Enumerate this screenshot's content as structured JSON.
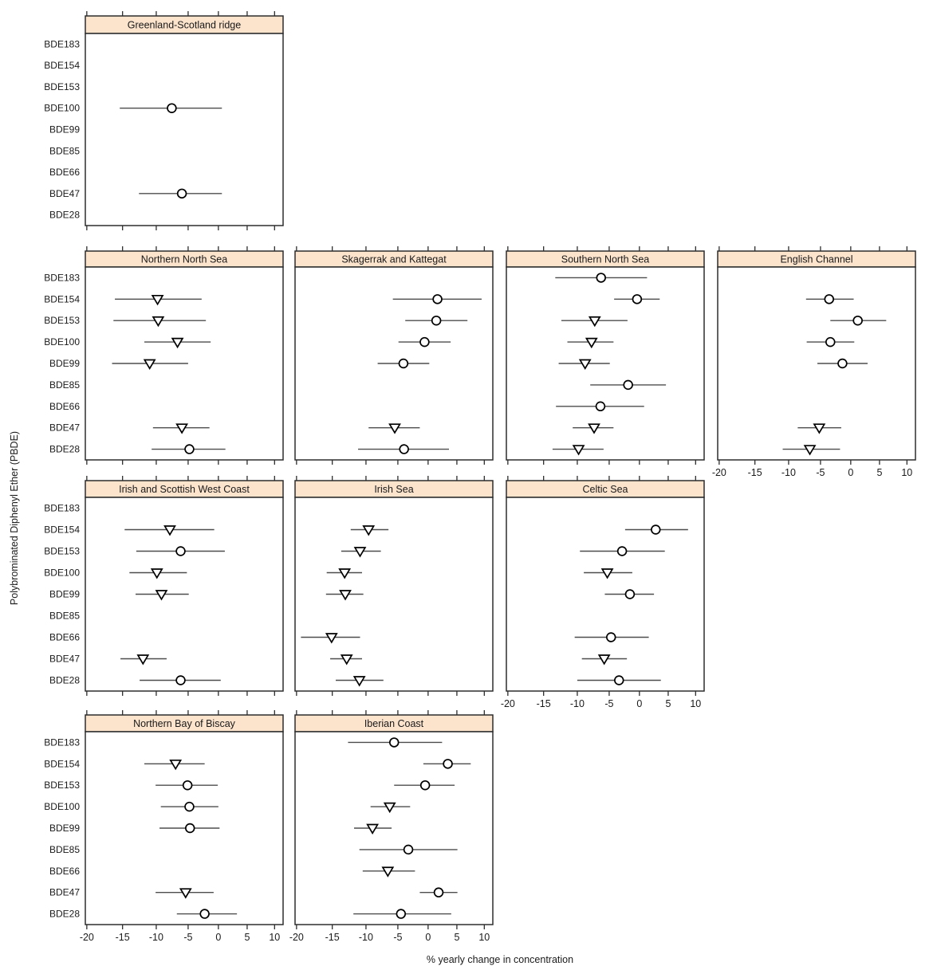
{
  "figure": {
    "background": "#ffffff"
  },
  "chart_data": {
    "type": "scatter",
    "variant": "trellis forest plot (point estimate with horizontal confidence interval per PBDE congener, one panel per sea region)",
    "x_axis": {
      "label": "% yearly change in concentration",
      "ticks": [
        -20,
        -15,
        -10,
        -5,
        0,
        5,
        10
      ],
      "range_pct": [
        -20.2,
        11.6
      ],
      "scale": "log(1 + pct/100)"
    },
    "y_axis": {
      "label": "Polybrominated Diphenyl Ether (PBDE)",
      "categories": [
        "BDE183",
        "BDE154",
        "BDE153",
        "BDE100",
        "BDE99",
        "BDE85",
        "BDE66",
        "BDE47",
        "BDE28"
      ]
    },
    "style": {
      "strip_fill": "#fbe3cc",
      "panel_border": "#2d2d2d",
      "ci_line_color": "#4d4d4d",
      "marker_fill": "#ffffff",
      "marker_stroke": "#000000",
      "background": "#ffffff"
    },
    "panels": [
      {
        "title": "Greenland-Scotland ridge",
        "grid_row": 0,
        "grid_col": 0,
        "show_y_labels": true,
        "show_x_tick_labels": false,
        "points": [
          {
            "congener": "BDE100",
            "marker": "circle",
            "estimate": -7.6,
            "ci_low": -15.4,
            "ci_high": 0.6
          },
          {
            "congener": "BDE47",
            "marker": "circle",
            "estimate": -6.0,
            "ci_low": -12.6,
            "ci_high": 0.6
          }
        ]
      },
      {
        "title": "Northern North Sea",
        "grid_row": 1,
        "grid_col": 0,
        "show_y_labels": true,
        "show_x_tick_labels": false,
        "points": [
          {
            "congener": "BDE154",
            "marker": "triangle-down",
            "estimate": -9.8,
            "ci_low": -16.1,
            "ci_high": -2.8
          },
          {
            "congener": "BDE153",
            "marker": "triangle-down",
            "estimate": -9.7,
            "ci_low": -16.3,
            "ci_high": -2.1
          },
          {
            "congener": "BDE100",
            "marker": "triangle-down",
            "estimate": -6.7,
            "ci_low": -11.8,
            "ci_high": -1.3
          },
          {
            "congener": "BDE99",
            "marker": "triangle-down",
            "estimate": -11.0,
            "ci_low": -16.5,
            "ci_high": -5.0
          },
          {
            "congener": "BDE47",
            "marker": "triangle-down",
            "estimate": -6.0,
            "ci_low": -10.5,
            "ci_high": -1.5
          },
          {
            "congener": "BDE28",
            "marker": "circle",
            "estimate": -4.8,
            "ci_low": -10.7,
            "ci_high": 1.2
          }
        ]
      },
      {
        "title": "Skagerrak and Kattegat",
        "grid_row": 1,
        "grid_col": 1,
        "show_y_labels": false,
        "show_x_tick_labels": false,
        "points": [
          {
            "congener": "BDE154",
            "marker": "circle",
            "estimate": 1.6,
            "ci_low": -5.8,
            "ci_high": 9.5
          },
          {
            "congener": "BDE153",
            "marker": "circle",
            "estimate": 1.4,
            "ci_low": -3.8,
            "ci_high": 6.9
          },
          {
            "congener": "BDE100",
            "marker": "circle",
            "estimate": -0.6,
            "ci_low": -4.9,
            "ci_high": 3.9
          },
          {
            "congener": "BDE99",
            "marker": "circle",
            "estimate": -4.1,
            "ci_low": -8.2,
            "ci_high": 0.2
          },
          {
            "congener": "BDE47",
            "marker": "triangle-down",
            "estimate": -5.5,
            "ci_low": -9.6,
            "ci_high": -1.4
          },
          {
            "congener": "BDE28",
            "marker": "circle",
            "estimate": -4.0,
            "ci_low": -11.2,
            "ci_high": 3.6
          }
        ]
      },
      {
        "title": "Southern North Sea",
        "grid_row": 1,
        "grid_col": 2,
        "show_y_labels": false,
        "show_x_tick_labels": false,
        "points": [
          {
            "congener": "BDE183",
            "marker": "circle",
            "estimate": -6.3,
            "ci_low": -13.3,
            "ci_high": 1.3
          },
          {
            "congener": "BDE154",
            "marker": "circle",
            "estimate": -0.4,
            "ci_low": -4.2,
            "ci_high": 3.5
          },
          {
            "congener": "BDE153",
            "marker": "triangle-down",
            "estimate": -7.3,
            "ci_low": -12.4,
            "ci_high": -2.0
          },
          {
            "congener": "BDE100",
            "marker": "triangle-down",
            "estimate": -7.8,
            "ci_low": -11.5,
            "ci_high": -4.3
          },
          {
            "congener": "BDE99",
            "marker": "triangle-down",
            "estimate": -8.8,
            "ci_low": -12.8,
            "ci_high": -4.9
          },
          {
            "congener": "BDE85",
            "marker": "circle",
            "estimate": -1.9,
            "ci_low": -8.0,
            "ci_high": 4.6
          },
          {
            "congener": "BDE66",
            "marker": "circle",
            "estimate": -6.4,
            "ci_low": -13.2,
            "ci_high": 0.8
          },
          {
            "congener": "BDE47",
            "marker": "triangle-down",
            "estimate": -7.4,
            "ci_low": -10.7,
            "ci_high": -4.3
          },
          {
            "congener": "BDE28",
            "marker": "triangle-down",
            "estimate": -9.8,
            "ci_low": -13.7,
            "ci_high": -5.9
          }
        ]
      },
      {
        "title": "English Channel",
        "grid_row": 1,
        "grid_col": 3,
        "show_y_labels": false,
        "show_x_tick_labels": true,
        "points": [
          {
            "congener": "BDE154",
            "marker": "circle",
            "estimate": -3.6,
            "ci_low": -7.3,
            "ci_high": 0.5
          },
          {
            "congener": "BDE153",
            "marker": "circle",
            "estimate": 1.2,
            "ci_low": -3.4,
            "ci_high": 6.2
          },
          {
            "congener": "BDE100",
            "marker": "circle",
            "estimate": -3.4,
            "ci_low": -7.2,
            "ci_high": 0.6
          },
          {
            "congener": "BDE99",
            "marker": "circle",
            "estimate": -1.4,
            "ci_low": -5.5,
            "ci_high": 2.9
          },
          {
            "congener": "BDE47",
            "marker": "triangle-down",
            "estimate": -5.2,
            "ci_low": -8.6,
            "ci_high": -1.6
          },
          {
            "congener": "BDE28",
            "marker": "triangle-down",
            "estimate": -6.7,
            "ci_low": -10.9,
            "ci_high": -1.8
          }
        ]
      },
      {
        "title": "Irish and Scottish West Coast",
        "grid_row": 2,
        "grid_col": 0,
        "show_y_labels": true,
        "show_x_tick_labels": false,
        "points": [
          {
            "congener": "BDE154",
            "marker": "triangle-down",
            "estimate": -7.9,
            "ci_low": -14.7,
            "ci_high": -0.7
          },
          {
            "congener": "BDE153",
            "marker": "circle",
            "estimate": -6.2,
            "ci_low": -13.0,
            "ci_high": 1.1
          },
          {
            "congener": "BDE100",
            "marker": "triangle-down",
            "estimate": -9.9,
            "ci_low": -14.0,
            "ci_high": -5.2
          },
          {
            "congener": "BDE99",
            "marker": "triangle-down",
            "estimate": -9.2,
            "ci_low": -13.1,
            "ci_high": -4.9
          },
          {
            "congener": "BDE47",
            "marker": "triangle-down",
            "estimate": -12.0,
            "ci_low": -15.3,
            "ci_high": -8.4
          },
          {
            "congener": "BDE28",
            "marker": "circle",
            "estimate": -6.2,
            "ci_low": -12.5,
            "ci_high": 0.4
          }
        ]
      },
      {
        "title": "Irish Sea",
        "grid_row": 2,
        "grid_col": 1,
        "show_y_labels": false,
        "show_x_tick_labels": false,
        "points": [
          {
            "congener": "BDE154",
            "marker": "triangle-down",
            "estimate": -9.6,
            "ci_low": -12.3,
            "ci_high": -6.5
          },
          {
            "congener": "BDE153",
            "marker": "triangle-down",
            "estimate": -10.9,
            "ci_low": -13.7,
            "ci_high": -7.7
          },
          {
            "congener": "BDE100",
            "marker": "triangle-down",
            "estimate": -13.2,
            "ci_low": -15.8,
            "ci_high": -10.6
          },
          {
            "congener": "BDE99",
            "marker": "triangle-down",
            "estimate": -13.1,
            "ci_low": -15.9,
            "ci_high": -10.4
          },
          {
            "congener": "BDE66",
            "marker": "triangle-down",
            "estimate": -15.1,
            "ci_low": -19.4,
            "ci_high": -10.9
          },
          {
            "congener": "BDE47",
            "marker": "triangle-down",
            "estimate": -12.9,
            "ci_low": -15.3,
            "ci_high": -10.6
          },
          {
            "congener": "BDE28",
            "marker": "triangle-down",
            "estimate": -11.0,
            "ci_low": -14.5,
            "ci_high": -7.3
          }
        ]
      },
      {
        "title": "Celtic Sea",
        "grid_row": 2,
        "grid_col": 2,
        "show_y_labels": false,
        "show_x_tick_labels": true,
        "points": [
          {
            "congener": "BDE154",
            "marker": "circle",
            "estimate": 2.8,
            "ci_low": -2.4,
            "ci_high": 8.6
          },
          {
            "congener": "BDE153",
            "marker": "circle",
            "estimate": -2.9,
            "ci_low": -9.6,
            "ci_high": 4.4
          },
          {
            "congener": "BDE100",
            "marker": "triangle-down",
            "estimate": -5.3,
            "ci_low": -9.0,
            "ci_high": -1.2
          },
          {
            "congener": "BDE99",
            "marker": "circle",
            "estimate": -1.6,
            "ci_low": -5.7,
            "ci_high": 2.5
          },
          {
            "congener": "BDE66",
            "marker": "circle",
            "estimate": -4.7,
            "ci_low": -10.4,
            "ci_high": 1.6
          },
          {
            "congener": "BDE47",
            "marker": "triangle-down",
            "estimate": -5.8,
            "ci_low": -9.3,
            "ci_high": -2.1
          },
          {
            "congener": "BDE28",
            "marker": "circle",
            "estimate": -3.4,
            "ci_low": -10.0,
            "ci_high": 3.7
          }
        ]
      },
      {
        "title": "Northern Bay of Biscay",
        "grid_row": 3,
        "grid_col": 0,
        "show_y_labels": true,
        "show_x_tick_labels": true,
        "points": [
          {
            "congener": "BDE154",
            "marker": "triangle-down",
            "estimate": -7.0,
            "ci_low": -11.8,
            "ci_high": -2.3
          },
          {
            "congener": "BDE153",
            "marker": "circle",
            "estimate": -5.1,
            "ci_low": -10.1,
            "ci_high": -0.1
          },
          {
            "congener": "BDE100",
            "marker": "circle",
            "estimate": -4.8,
            "ci_low": -9.3,
            "ci_high": 0.0
          },
          {
            "congener": "BDE99",
            "marker": "circle",
            "estimate": -4.7,
            "ci_low": -9.5,
            "ci_high": 0.2
          },
          {
            "congener": "BDE47",
            "marker": "triangle-down",
            "estimate": -5.4,
            "ci_low": -10.1,
            "ci_high": -0.8
          },
          {
            "congener": "BDE28",
            "marker": "circle",
            "estimate": -2.3,
            "ci_low": -6.8,
            "ci_high": 3.2
          }
        ]
      },
      {
        "title": "Iberian Coast",
        "grid_row": 3,
        "grid_col": 1,
        "show_y_labels": false,
        "show_x_tick_labels": true,
        "points": [
          {
            "congener": "BDE183",
            "marker": "circle",
            "estimate": -5.6,
            "ci_low": -12.7,
            "ci_high": 2.4
          },
          {
            "congener": "BDE154",
            "marker": "circle",
            "estimate": 3.4,
            "ci_low": -0.8,
            "ci_high": 7.5
          },
          {
            "congener": "BDE153",
            "marker": "circle",
            "estimate": -0.5,
            "ci_low": -5.6,
            "ci_high": 4.6
          },
          {
            "congener": "BDE100",
            "marker": "triangle-down",
            "estimate": -6.3,
            "ci_low": -9.3,
            "ci_high": -3.0
          },
          {
            "congener": "BDE99",
            "marker": "triangle-down",
            "estimate": -9.0,
            "ci_low": -11.8,
            "ci_high": -6.0
          },
          {
            "congener": "BDE85",
            "marker": "circle",
            "estimate": -3.3,
            "ci_low": -11.0,
            "ci_high": 5.1
          },
          {
            "congener": "BDE66",
            "marker": "triangle-down",
            "estimate": -6.6,
            "ci_low": -10.5,
            "ci_high": -2.2
          },
          {
            "congener": "BDE47",
            "marker": "circle",
            "estimate": 1.8,
            "ci_low": -1.4,
            "ci_high": 5.1
          },
          {
            "congener": "BDE28",
            "marker": "circle",
            "estimate": -4.5,
            "ci_low": -11.9,
            "ci_high": 4.0
          }
        ]
      }
    ]
  }
}
